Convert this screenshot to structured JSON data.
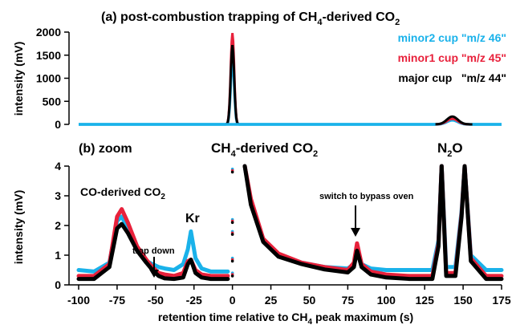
{
  "chart_data": [
    {
      "panel_label": "(a) post-combustion trapping of CH",
      "panel_label_sub": "4",
      "panel_label_tail": "-derived CO",
      "panel_label_sub2": "2",
      "type": "scatter",
      "ylabel": "intensity (mV)",
      "ylim": [
        0,
        2000
      ],
      "yticks": [
        0,
        500,
        1000,
        1500,
        2000
      ],
      "xlim": [
        -100,
        175
      ],
      "legend_placement": "right",
      "series": [
        {
          "name": "minor2 cup \"m/z 46\"",
          "color": "#1ab2ea",
          "peaks": [
            {
              "x": 0,
              "height": 1450
            },
            {
              "x": 143,
              "height": 90
            }
          ]
        },
        {
          "name": "minor1 cup \"m/z 45\"",
          "color": "#e8213b",
          "peaks": [
            {
              "x": 0,
              "height": 1980
            },
            {
              "x": 143,
              "height": 120
            }
          ]
        },
        {
          "name": "major cup   \"m/z 44\"",
          "color": "#000000",
          "peaks": [
            {
              "x": 0,
              "height": 1720
            },
            {
              "x": 143,
              "height": 170
            }
          ]
        }
      ]
    },
    {
      "panel_label": "(b) zoom",
      "type": "scatter",
      "ylabel": "intensity (mV)",
      "xlabel": "retention time relative to CH",
      "xlabel_sub": "4",
      "xlabel_tail": " peak maximum (s)",
      "ylim": [
        0,
        4
      ],
      "yticks": [
        0,
        1,
        2,
        3,
        4
      ],
      "xlim": [
        -100,
        175
      ],
      "xticks": [
        -100,
        -75,
        -50,
        -25,
        0,
        25,
        50,
        75,
        100,
        125,
        150,
        175
      ],
      "annotations": {
        "co_label": "CO-derived CO",
        "co_sub": "2",
        "ch4_label": "CH",
        "ch4_sub": "4",
        "ch4_tail": "-derived CO",
        "ch4_sub2": "2",
        "trap_down": "trap down",
        "kr": "Kr",
        "bypass": "switch to bypass oven",
        "n2o": "N",
        "n2o_sub": "2",
        "n2o_tail": "O"
      },
      "series": [
        {
          "name": "minor2 cup \"m/z 46\"",
          "color": "#1ab2ea",
          "x": [
            -100,
            -90,
            -80,
            -75,
            -72,
            -68,
            -62,
            -56,
            -52,
            -48,
            -44,
            -38,
            -32,
            -29,
            -27,
            -24,
            -20,
            -14,
            -8,
            -3,
            8,
            12,
            20,
            30,
            45,
            60,
            75,
            79,
            81,
            84,
            90,
            100,
            115,
            130,
            134,
            136,
            139,
            145,
            149,
            151,
            155,
            165,
            175
          ],
          "y": [
            0.5,
            0.45,
            0.75,
            2.15,
            2.3,
            1.9,
            1.2,
            0.8,
            0.7,
            0.6,
            0.55,
            0.5,
            0.7,
            1.2,
            1.8,
            0.9,
            0.55,
            0.45,
            0.45,
            0.45,
            4.0,
            2.8,
            1.5,
            1.0,
            0.75,
            0.6,
            0.55,
            0.7,
            1.25,
            0.7,
            0.55,
            0.5,
            0.5,
            0.5,
            1.5,
            4.0,
            0.6,
            0.6,
            2.5,
            4.0,
            1.0,
            0.5,
            0.5
          ]
        },
        {
          "name": "minor1 cup \"m/z 45\"",
          "color": "#e8213b",
          "x": [
            -100,
            -90,
            -80,
            -75,
            -72,
            -68,
            -62,
            -56,
            -52,
            -48,
            -44,
            -38,
            -32,
            -29,
            -27,
            -24,
            -20,
            -14,
            -8,
            -3,
            8,
            12,
            20,
            30,
            45,
            60,
            75,
            79,
            81,
            84,
            90,
            100,
            115,
            130,
            134,
            136,
            139,
            145,
            149,
            151,
            155,
            165,
            175
          ],
          "y": [
            0.3,
            0.3,
            0.7,
            2.3,
            2.55,
            2.1,
            1.3,
            0.85,
            0.6,
            0.4,
            0.35,
            0.3,
            0.4,
            0.8,
            0.85,
            0.5,
            0.35,
            0.3,
            0.3,
            0.3,
            4.0,
            2.9,
            1.55,
            1.05,
            0.75,
            0.6,
            0.5,
            0.75,
            1.4,
            0.7,
            0.45,
            0.35,
            0.3,
            0.3,
            1.4,
            4.0,
            0.4,
            0.4,
            2.4,
            4.0,
            0.9,
            0.3,
            0.3
          ]
        },
        {
          "name": "major cup   \"m/z 44\"",
          "color": "#000000",
          "x": [
            -100,
            -90,
            -80,
            -75,
            -72,
            -68,
            -62,
            -56,
            -52,
            -48,
            -44,
            -38,
            -32,
            -29,
            -27,
            -24,
            -20,
            -14,
            -8,
            -3,
            8,
            12,
            20,
            30,
            45,
            60,
            75,
            79,
            81,
            84,
            90,
            100,
            115,
            130,
            134,
            136,
            139,
            145,
            149,
            151,
            155,
            165,
            175
          ],
          "y": [
            0.2,
            0.2,
            0.6,
            1.9,
            2.05,
            1.75,
            1.15,
            0.75,
            0.5,
            0.3,
            0.22,
            0.2,
            0.25,
            0.7,
            0.85,
            0.4,
            0.25,
            0.2,
            0.2,
            0.2,
            4.0,
            2.7,
            1.45,
            0.95,
            0.7,
            0.52,
            0.42,
            0.6,
            1.15,
            0.6,
            0.35,
            0.25,
            0.2,
            0.2,
            1.3,
            4.0,
            0.3,
            0.3,
            2.3,
            4.0,
            0.8,
            0.2,
            0.2
          ]
        }
      ]
    }
  ]
}
